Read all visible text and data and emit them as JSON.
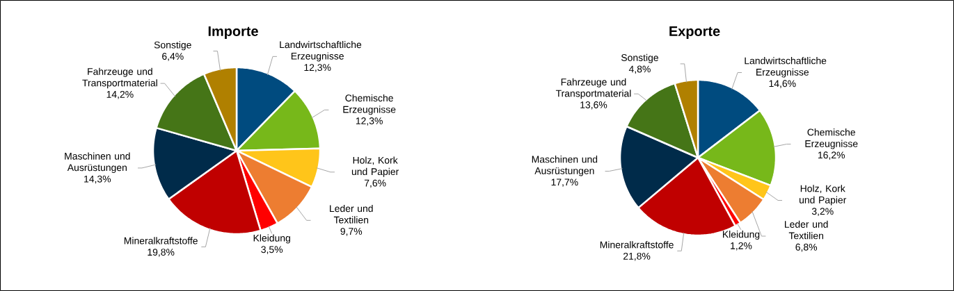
{
  "chart_data": [
    {
      "type": "pie",
      "title": "Importe",
      "categories": [
        "Landwirtschaftliche Erzeugnisse",
        "Chemische Erzeugnisse",
        "Holz, Kork und Papier",
        "Leder und Textilien",
        "Kleidung",
        "Mineralkraftstoffe",
        "Maschinen und Ausrüstungen",
        "Fahrzeuge und Transportmaterial",
        "Sonstige"
      ],
      "values": [
        12.3,
        12.3,
        7.6,
        9.7,
        3.5,
        19.8,
        14.3,
        14.2,
        6.4
      ],
      "value_labels": [
        "12,3%",
        "12,3%",
        "7,6%",
        "9,7%",
        "3,5%",
        "19,8%",
        "14,3%",
        "14,2%",
        "6,4%"
      ],
      "colors": [
        "#004b7f",
        "#77b81a",
        "#ffc51a",
        "#ed7d31",
        "#ff0000",
        "#c00000",
        "#002b4a",
        "#457517",
        "#b08000"
      ]
    },
    {
      "type": "pie",
      "title": "Exporte",
      "categories": [
        "Landwirtschaftliche Erzeugnisse",
        "Chemische Erzeugnisse",
        "Holz, Kork und Papier",
        "Leder und Textilien",
        "Kleidung",
        "Mineralkraftstoffe",
        "Maschinen und Ausrüstungen",
        "Fahrzeuge und Transportmaterial",
        "Sonstige"
      ],
      "values": [
        14.6,
        16.2,
        3.2,
        6.8,
        1.2,
        21.8,
        17.7,
        13.6,
        4.8
      ],
      "value_labels": [
        "14,6%",
        "16,2%",
        "3,2%",
        "6,8%",
        "1,2%",
        "21,8%",
        "17,7%",
        "13,6%",
        "4,8%"
      ],
      "colors": [
        "#004b7f",
        "#77b81a",
        "#ffc51a",
        "#ed7d31",
        "#ff0000",
        "#c00000",
        "#002b4a",
        "#457517",
        "#b08000"
      ]
    }
  ]
}
